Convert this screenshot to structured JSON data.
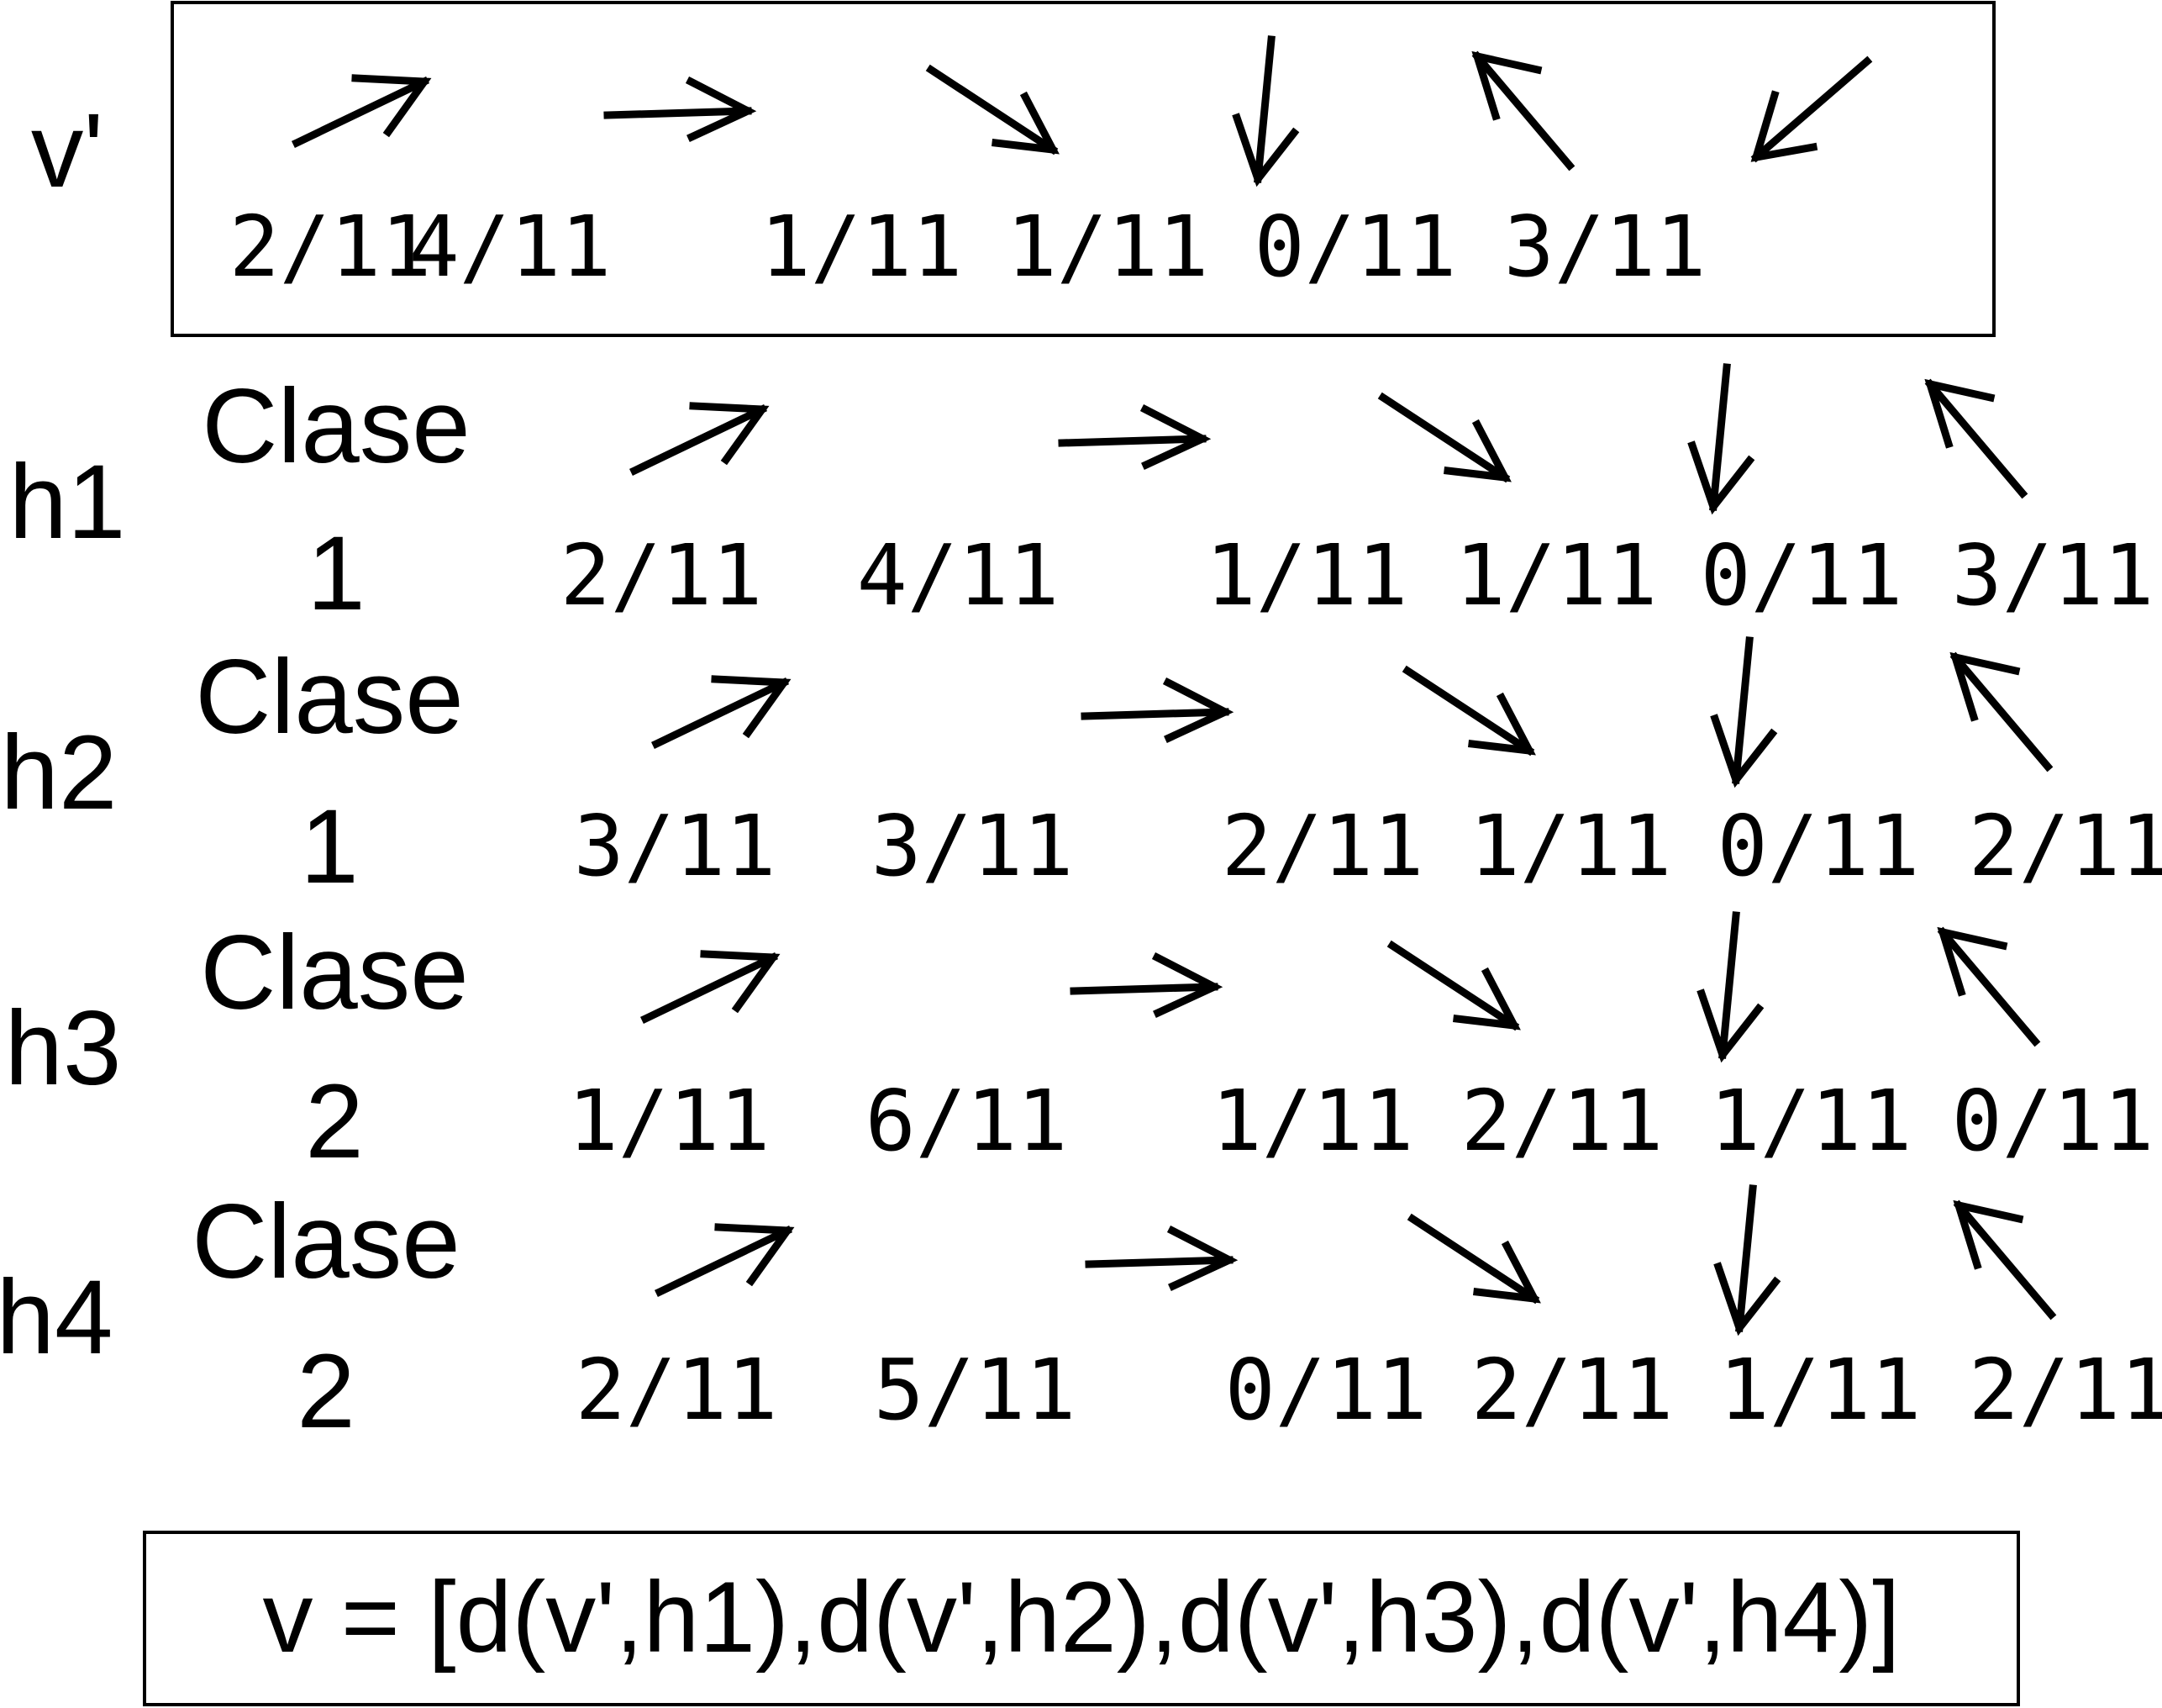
{
  "rows": [
    {
      "id": "vprime",
      "label": "v'",
      "class_word": "",
      "class_num": "",
      "fractions": [
        "2/11",
        "4/11",
        "1/11",
        "1/11",
        "0/11",
        "3/11"
      ]
    },
    {
      "id": "h1",
      "label": "h1",
      "class_word": "Clase",
      "class_num": "1",
      "fractions": [
        "2/11",
        "4/11",
        "1/11",
        "1/11",
        "0/11",
        "3/11"
      ]
    },
    {
      "id": "h2",
      "label": "h2",
      "class_word": "Clase",
      "class_num": "1",
      "fractions": [
        "3/11",
        "3/11",
        "2/11",
        "1/11",
        "0/11",
        "2/11"
      ]
    },
    {
      "id": "h3",
      "label": "h3",
      "class_word": "Clase",
      "class_num": "2",
      "fractions": [
        "1/11",
        "6/11",
        "1/11",
        "2/11",
        "1/11",
        "0/11"
      ]
    },
    {
      "id": "h4",
      "label": "h4",
      "class_word": "Clase",
      "class_num": "2",
      "fractions": [
        "2/11",
        "5/11",
        "0/11",
        "2/11",
        "1/11",
        "2/11"
      ]
    }
  ],
  "directions": [
    "up-right-arrow",
    "right-arrow",
    "down-right-arrow",
    "down-arrow",
    "up-left-arrow",
    "down-left-arrow"
  ],
  "formula": "v = [d(v',h1),d(v',h2),d(v',h3),d(v',h4)]"
}
